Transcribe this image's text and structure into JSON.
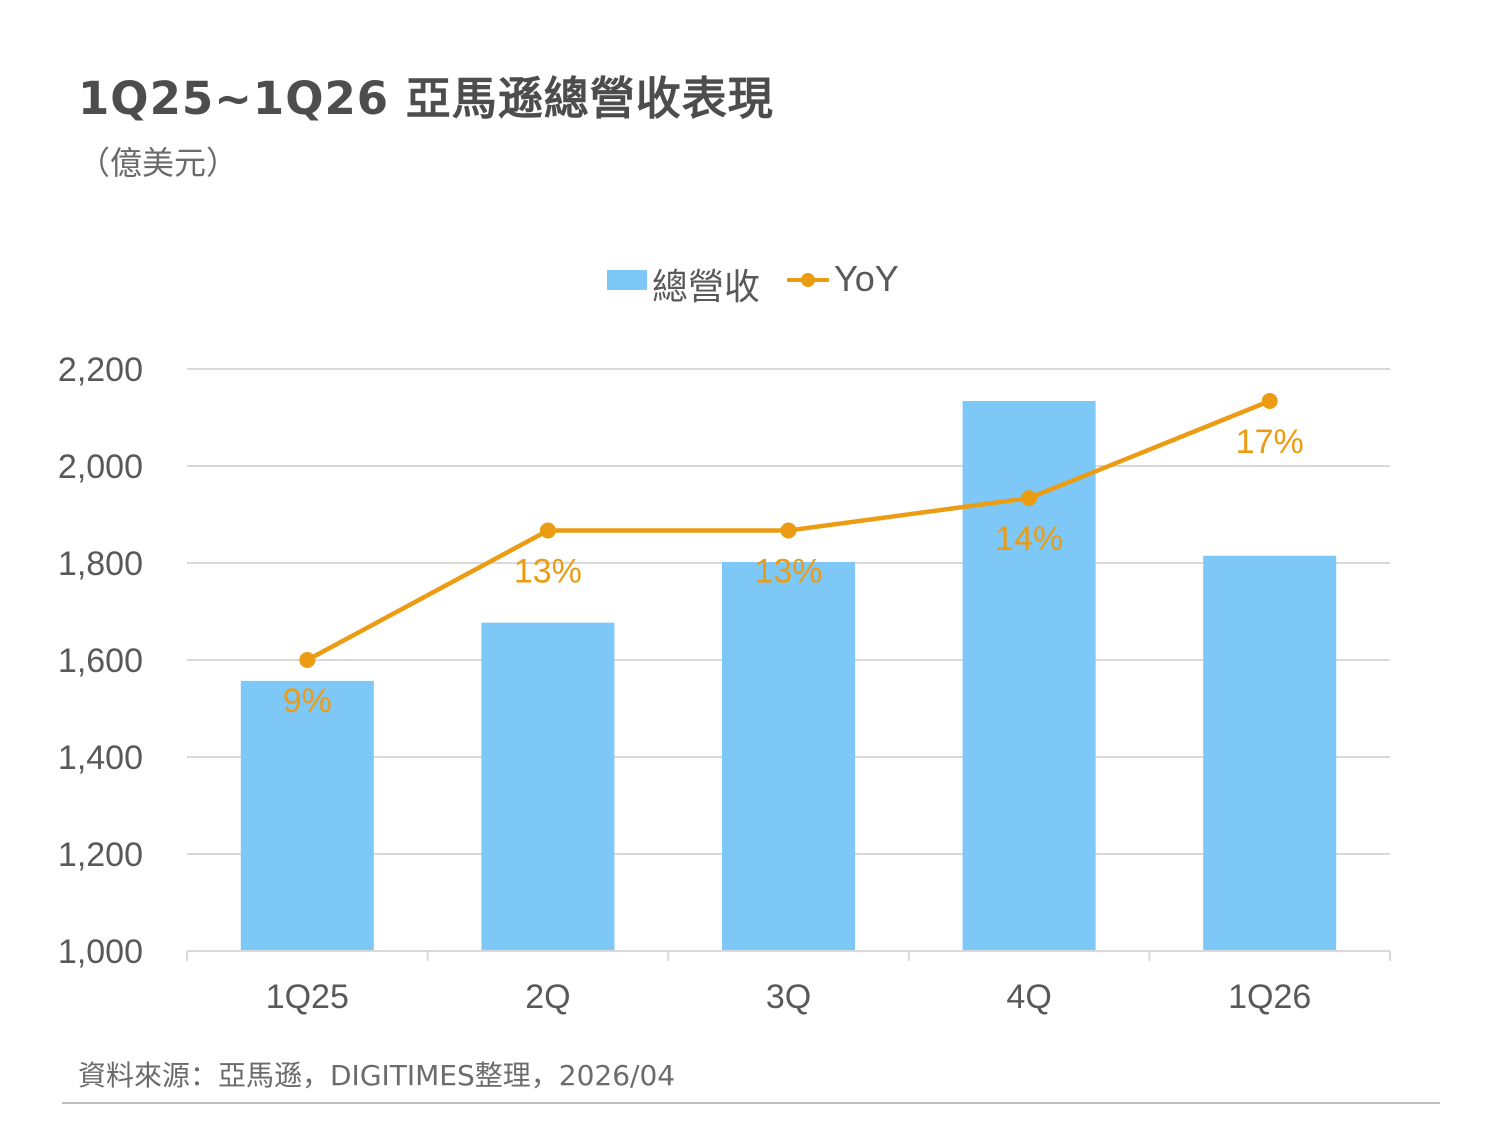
{
  "title": "1Q25~1Q26 亞馬遜總營收表現",
  "unit": "（億美元）",
  "source": "資料來源：亞馬遜，DIGITIMES整理，2026/04",
  "legend": {
    "bar": "總營收",
    "line": "YoY"
  },
  "colors": {
    "bar": "#7ec8f8",
    "line": "#eb9c12",
    "axis_text": "#595959",
    "grid": "#d9d9d9"
  },
  "chart_data": {
    "type": "bar",
    "title": "1Q25~1Q26 亞馬遜總營收表現",
    "ylabel": "億美元",
    "ylim": [
      1000,
      2200
    ],
    "yticks": [
      1000,
      1200,
      1400,
      1600,
      1800,
      2000,
      2200
    ],
    "ytick_labels": [
      "1,000",
      "1,200",
      "1,400",
      "1,600",
      "1,800",
      "2,000",
      "2,200"
    ],
    "categories": [
      "1Q25",
      "2Q",
      "3Q",
      "4Q",
      "1Q26"
    ],
    "series": [
      {
        "name": "總營收",
        "type": "bar",
        "axis": "left",
        "values": [
          1557,
          1677,
          1802,
          2134,
          1815
        ]
      },
      {
        "name": "YoY",
        "type": "line",
        "axis": "right",
        "values": [
          9,
          13,
          13,
          14,
          17
        ],
        "labels": [
          "9%",
          "13%",
          "13%",
          "14%",
          "17%"
        ]
      }
    ],
    "legend_position": "top-center"
  }
}
